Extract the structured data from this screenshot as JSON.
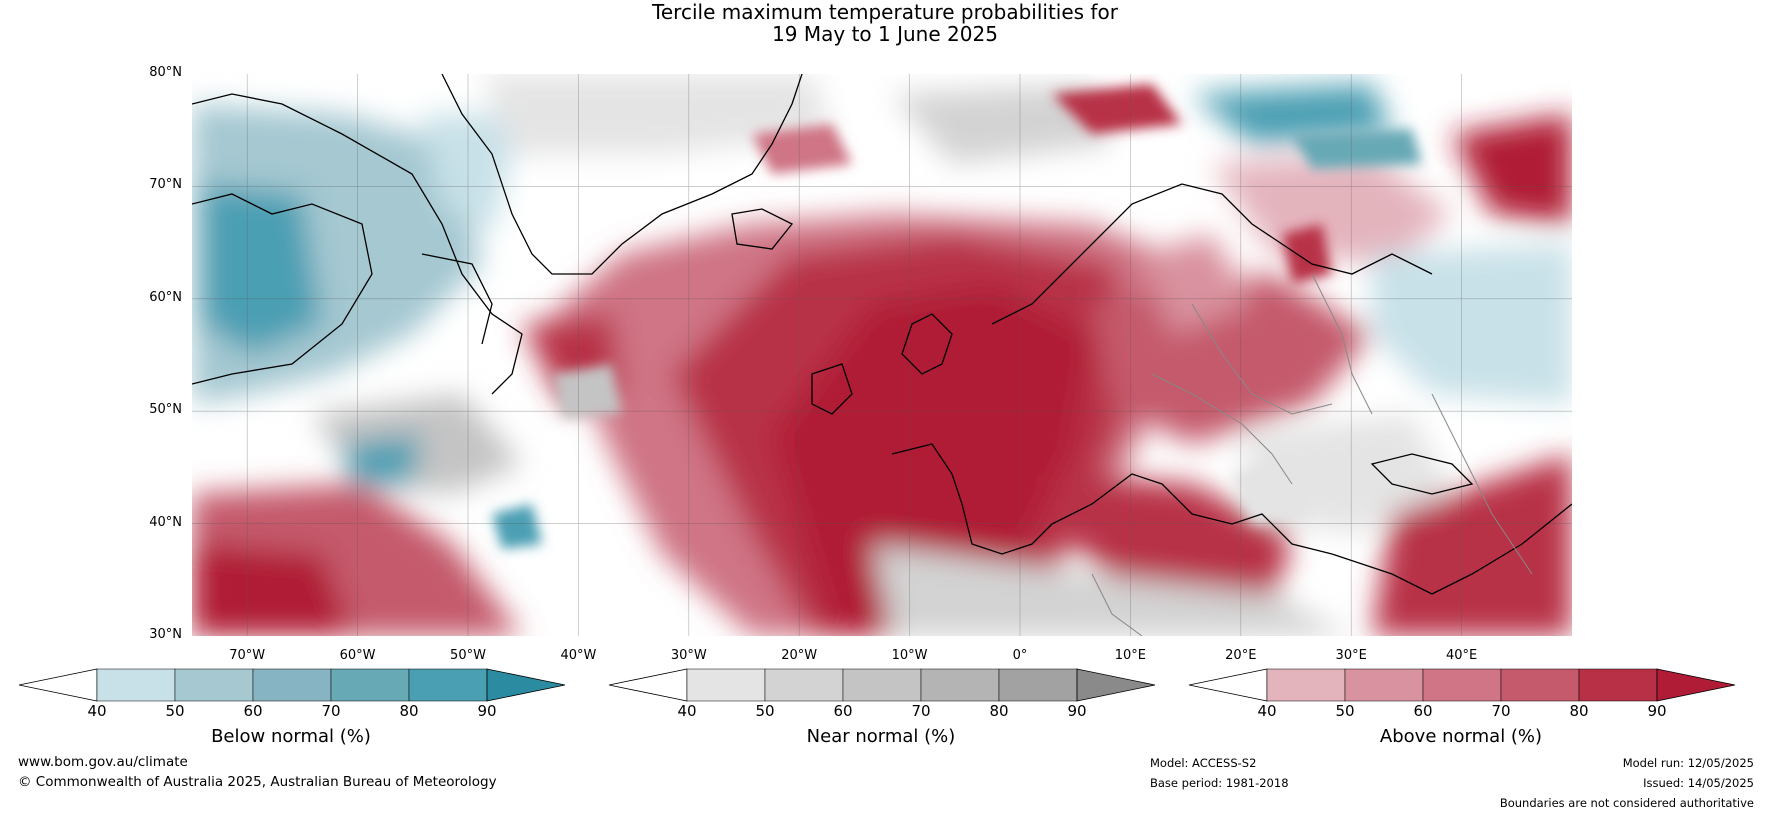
{
  "title": {
    "line1": "Tercile maximum temperature probabilities for",
    "line2": "19 May to 1 June 2025"
  },
  "map": {
    "lat_labels": [
      "80°N",
      "70°N",
      "60°N",
      "50°N",
      "40°N",
      "30°N"
    ],
    "lon_labels": [
      "70°W",
      "60°W",
      "50°W",
      "40°W",
      "30°W",
      "20°W",
      "10°W",
      "0°",
      "10°E",
      "20°E",
      "30°E",
      "40°E"
    ],
    "lat_range": [
      30,
      80
    ],
    "lon_range": [
      -75,
      50
    ],
    "gridlines": true
  },
  "colorbars": [
    {
      "label": "Below normal (%)",
      "ticks": [
        "40",
        "50",
        "60",
        "70",
        "80",
        "90"
      ],
      "colors": [
        "#ffffff",
        "#c8e1e8",
        "#a5c8d1",
        "#86b4c3",
        "#68a9b6",
        "#4b9fb3",
        "#2b8ba0"
      ]
    },
    {
      "label": "Near normal (%)",
      "ticks": [
        "40",
        "50",
        "60",
        "70",
        "80",
        "90"
      ],
      "colors": [
        "#ffffff",
        "#e4e4e4",
        "#d3d3d3",
        "#c4c4c4",
        "#b4b4b4",
        "#a2a2a2",
        "#8a8a8a"
      ]
    },
    {
      "label": "Above normal (%)",
      "ticks": [
        "40",
        "50",
        "60",
        "70",
        "80",
        "90"
      ],
      "colors": [
        "#ffffff",
        "#e4b4bd",
        "#d9929f",
        "#cf7585",
        "#c45a6c",
        "#b83046",
        "#b01c36"
      ]
    }
  ],
  "footer": {
    "website": "www.bom.gov.au/climate",
    "copyright": "© Commonwealth of Australia 2025, Australian Bureau of Meteorology",
    "model": "Model: ACCESS-S2",
    "base_period": "Base period: 1981-2018",
    "model_run": "Model run: 12/05/2025",
    "issued": "Issued: 14/05/2025",
    "disclaimer": "Boundaries are not considered authoritative"
  }
}
